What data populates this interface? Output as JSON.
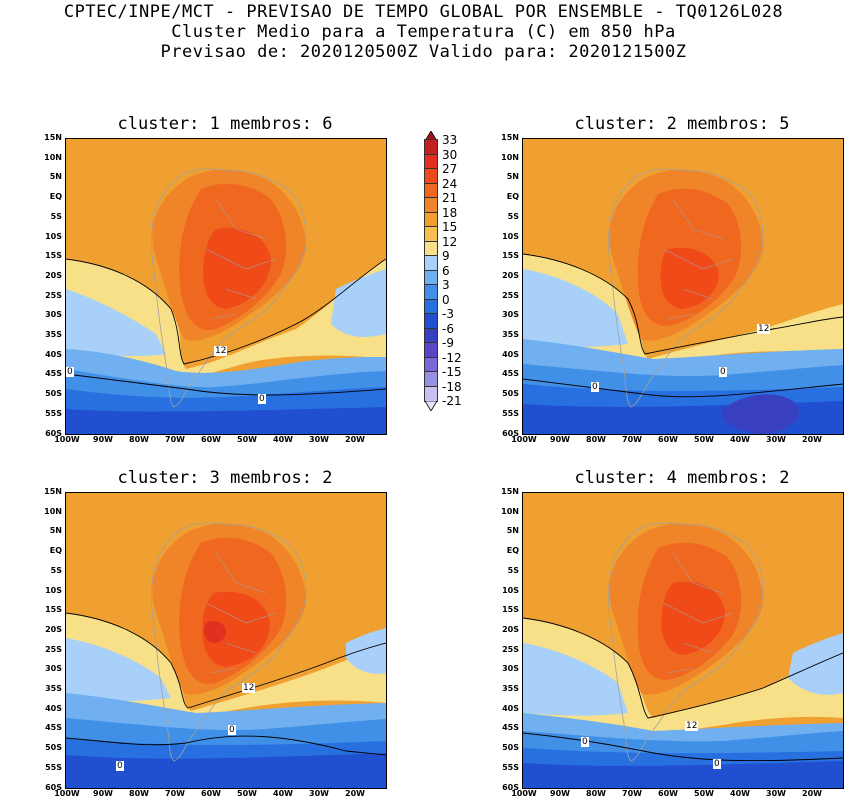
{
  "header": {
    "line1": "CPTEC/INPE/MCT - PREVISAO DE TEMPO GLOBAL POR ENSEMBLE - TQ0126L028",
    "line2": "Cluster Medio para a Temperatura (C) em 850 hPa",
    "line3": "Previsao de: 2020120500Z   Valido para: 2020121500Z"
  },
  "panels": [
    {
      "title": "cluster: 1  membros: 6",
      "contour_labels": [
        "12",
        "0",
        "0"
      ]
    },
    {
      "title": "cluster: 2  membros: 5",
      "contour_labels": [
        "12",
        "0",
        "0"
      ]
    },
    {
      "title": "cluster: 3  membros: 2",
      "contour_labels": [
        "12",
        "0",
        "0"
      ]
    },
    {
      "title": "cluster: 4  membros: 2",
      "contour_labels": [
        "12",
        "0",
        "0"
      ]
    }
  ],
  "lat_labels": [
    "15N",
    "10N",
    "5N",
    "EQ",
    "5S",
    "10S",
    "15S",
    "20S",
    "25S",
    "30S",
    "35S",
    "40S",
    "45S",
    "50S",
    "55S",
    "60S"
  ],
  "lon_labels": [
    "100W",
    "90W",
    "80W",
    "70W",
    "60W",
    "50W",
    "40W",
    "30W",
    "20W"
  ],
  "colorbar": {
    "labels": [
      "33",
      "30",
      "27",
      "24",
      "21",
      "18",
      "15",
      "12",
      "9",
      "6",
      "3",
      "0",
      "-3",
      "-6",
      "-9",
      "-12",
      "-15",
      "-18",
      "-21"
    ],
    "colors": [
      "#a01418",
      "#c42020",
      "#e03020",
      "#f04a18",
      "#f06820",
      "#f08428",
      "#f0a030",
      "#f8c050",
      "#f8e088",
      "#a8d0f8",
      "#70b0f0",
      "#4090e8",
      "#2870e0",
      "#2050d0",
      "#3840c0",
      "#5848c8",
      "#7868d8",
      "#9890e0",
      "#c8c0f0",
      "#e8e0f8"
    ]
  }
}
